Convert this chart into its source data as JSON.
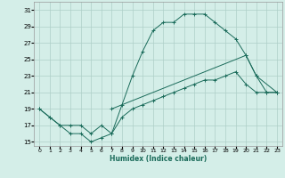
{
  "xlabel": "Humidex (Indice chaleur)",
  "background_color": "#d4eee8",
  "grid_color": "#aecfc8",
  "line_color": "#1a6b5a",
  "xlim": [
    -0.5,
    23.5
  ],
  "ylim": [
    14.5,
    32
  ],
  "xticks": [
    0,
    1,
    2,
    3,
    4,
    5,
    6,
    7,
    8,
    9,
    10,
    11,
    12,
    13,
    14,
    15,
    16,
    17,
    18,
    19,
    20,
    21,
    22,
    23
  ],
  "yticks": [
    15,
    17,
    19,
    21,
    23,
    25,
    27,
    29,
    31
  ],
  "line1_x": [
    0,
    1,
    2,
    3,
    4,
    5,
    6,
    7,
    8,
    9,
    10,
    11,
    12,
    13,
    14,
    15,
    16,
    17,
    18,
    19,
    20,
    21,
    22,
    23
  ],
  "line1_y": [
    19,
    18,
    17,
    16,
    16,
    15,
    15.5,
    16,
    19.5,
    23,
    26,
    28.5,
    29.5,
    29.5,
    30.5,
    30.5,
    30.5,
    29.5,
    28.5,
    27.5,
    25.5,
    23,
    21,
    21
  ],
  "line3_x": [
    0,
    1,
    2,
    3,
    4,
    5,
    6,
    7,
    8,
    9,
    10,
    11,
    12,
    13,
    14,
    15,
    16,
    17,
    18,
    19,
    20,
    21,
    22,
    23
  ],
  "line3_y": [
    19,
    18,
    17,
    17,
    17,
    16,
    17,
    16,
    18,
    19,
    19.5,
    20,
    20.5,
    21,
    21.5,
    22,
    22.5,
    22.5,
    23,
    23.5,
    22,
    21,
    21,
    21
  ],
  "line2_x": [
    7,
    20,
    21,
    23
  ],
  "line2_y": [
    19,
    25.5,
    23,
    21
  ]
}
